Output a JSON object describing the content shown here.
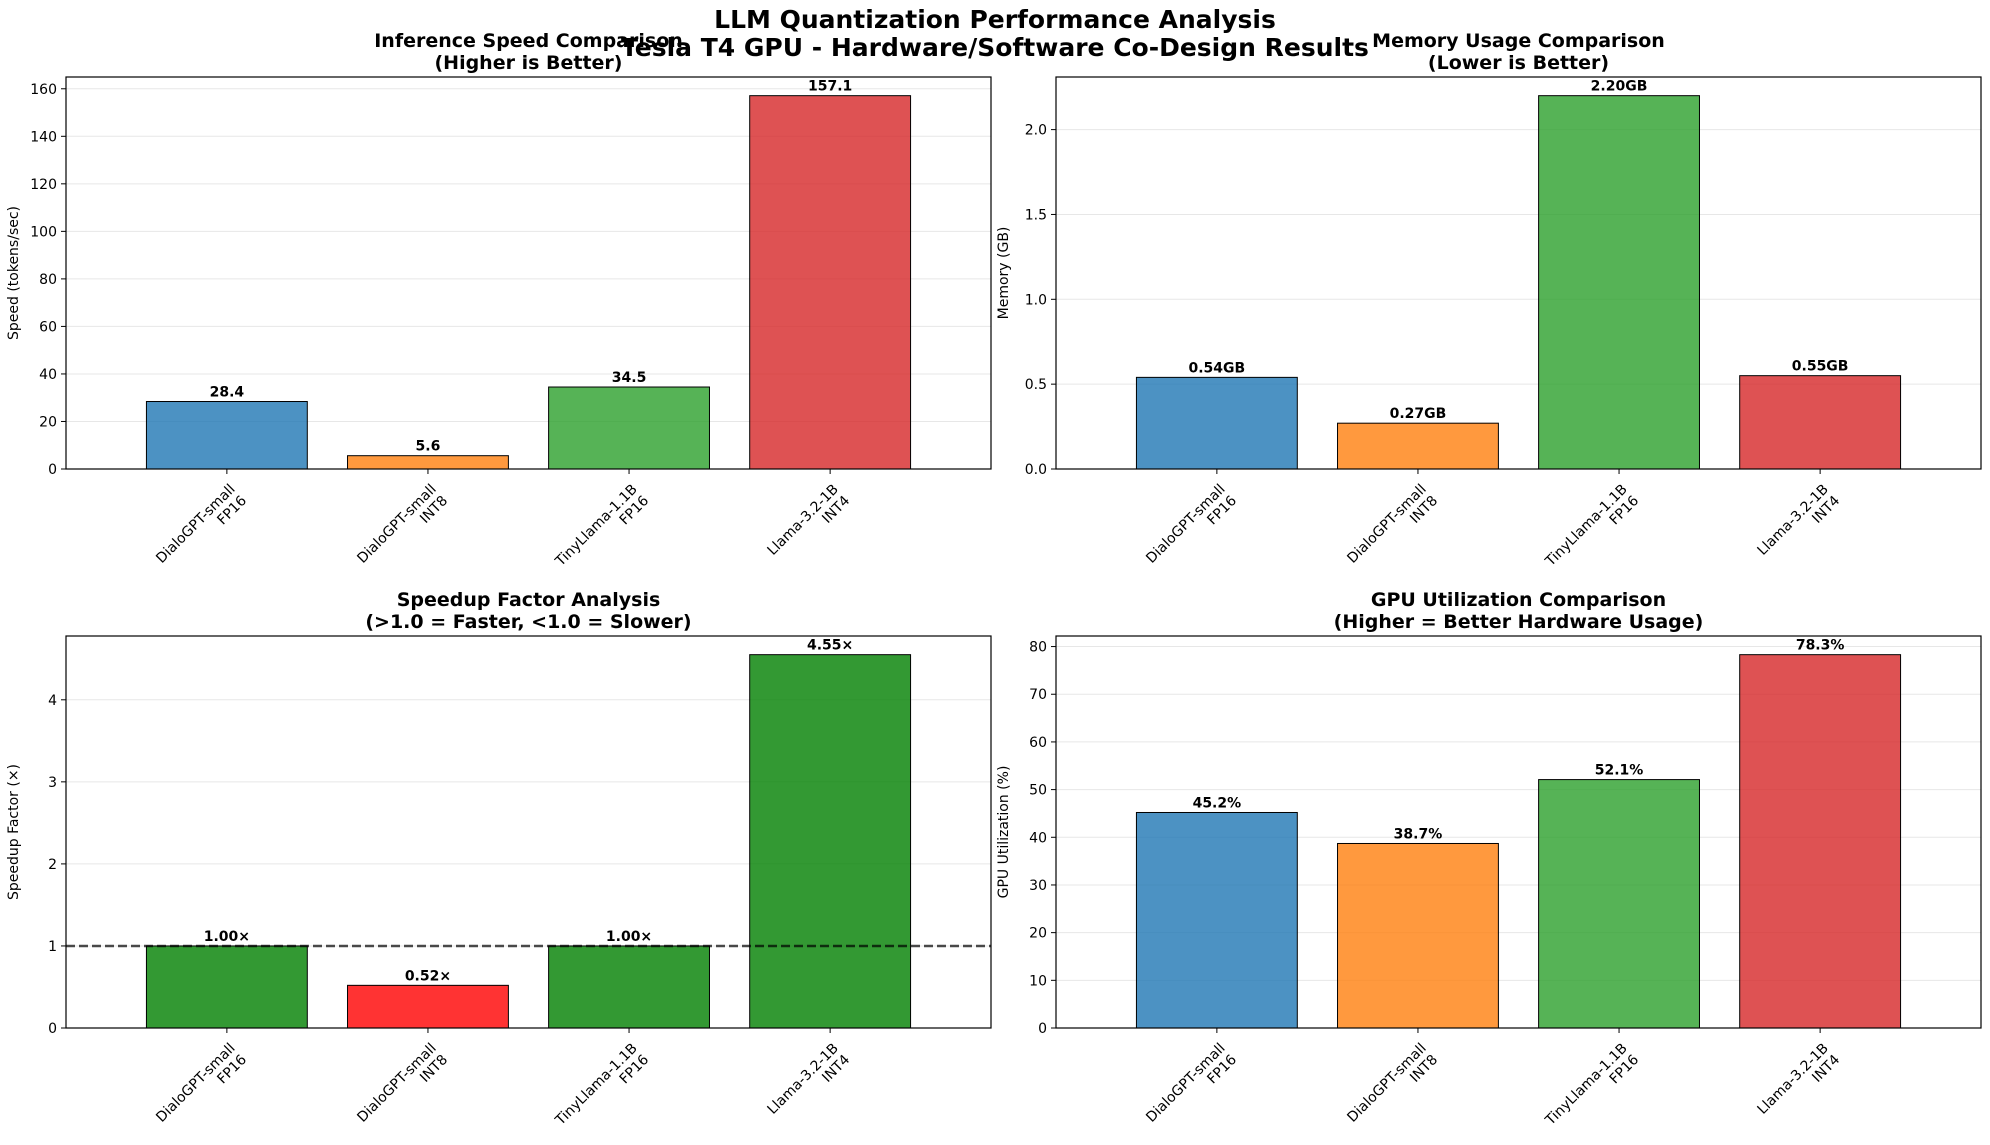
{
  "suptitle": [
    "LLM Quantization Performance Analysis",
    "Tesla T4 GPU - Hardware/Software Co-Design Results"
  ],
  "colors": {
    "blue": "#1f77b4",
    "orange": "#ff7f0e",
    "green": "#2ca02c",
    "red": "#d62728",
    "lightred": "#ff0000",
    "darkgreen": "#008000"
  },
  "chart_data": [
    {
      "type": "bar",
      "title": [
        "Inference Speed Comparison",
        "(Higher is Better)"
      ],
      "ylabel": "Speed (tokens/sec)",
      "categories": [
        [
          "DialoGPT-small",
          "FP16"
        ],
        [
          "DialoGPT-small",
          "INT8"
        ],
        [
          "TinyLlama-1.1B",
          "FP16"
        ],
        [
          "Llama-3.2-1B",
          "INT4"
        ]
      ],
      "values": [
        28.4,
        5.6,
        34.5,
        157.1
      ],
      "labels": [
        "28.4",
        "5.6",
        "34.5",
        "157.1"
      ],
      "bar_colors": [
        "#1f77b4",
        "#ff7f0e",
        "#2ca02c",
        "#d62728"
      ],
      "ylim": [
        0,
        164.955
      ],
      "yticks": [
        0,
        20,
        40,
        60,
        80,
        100,
        120,
        140,
        160
      ],
      "ytick_labels": [
        "0",
        "20",
        "40",
        "60",
        "80",
        "100",
        "120",
        "140",
        "160"
      ],
      "grid": "y"
    },
    {
      "type": "bar",
      "title": [
        "Memory Usage Comparison",
        "(Lower is Better)"
      ],
      "ylabel": "Memory (GB)",
      "categories": [
        [
          "DialoGPT-small",
          "FP16"
        ],
        [
          "DialoGPT-small",
          "INT8"
        ],
        [
          "TinyLlama-1.1B",
          "FP16"
        ],
        [
          "Llama-3.2-1B",
          "INT4"
        ]
      ],
      "values": [
        0.54,
        0.27,
        2.2,
        0.55
      ],
      "labels": [
        "0.54GB",
        "0.27GB",
        "2.20GB",
        "0.55GB"
      ],
      "bar_colors": [
        "#1f77b4",
        "#ff7f0e",
        "#2ca02c",
        "#d62728"
      ],
      "ylim": [
        0,
        2.31
      ],
      "yticks": [
        0,
        0.5,
        1.0,
        1.5,
        2.0
      ],
      "ytick_labels": [
        "0.0",
        "0.5",
        "1.0",
        "1.5",
        "2.0"
      ],
      "grid": "y"
    },
    {
      "type": "bar",
      "title": [
        "Speedup Factor Analysis",
        "(>1.0 = Faster, <1.0 = Slower)"
      ],
      "ylabel": "Speedup Factor (×)",
      "categories": [
        [
          "DialoGPT-small",
          "FP16"
        ],
        [
          "DialoGPT-small",
          "INT8"
        ],
        [
          "TinyLlama-1.1B",
          "FP16"
        ],
        [
          "Llama-3.2-1B",
          "INT4"
        ]
      ],
      "values": [
        1.0,
        0.52,
        1.0,
        4.55
      ],
      "labels": [
        "1.00×",
        "0.52×",
        "1.00×",
        "4.55×"
      ],
      "bar_colors": [
        "#008000",
        "#ff0000",
        "#008000",
        "#008000"
      ],
      "ylim": [
        0,
        4.7775
      ],
      "yticks": [
        0,
        1,
        2,
        3,
        4
      ],
      "ytick_labels": [
        "0",
        "1",
        "2",
        "3",
        "4"
      ],
      "reference_line": 1.0,
      "grid": "y"
    },
    {
      "type": "bar",
      "title": [
        "GPU Utilization Comparison",
        "(Higher = Better Hardware Usage)"
      ],
      "ylabel": "GPU Utilization (%)",
      "categories": [
        [
          "DialoGPT-small",
          "FP16"
        ],
        [
          "DialoGPT-small",
          "INT8"
        ],
        [
          "TinyLlama-1.1B",
          "FP16"
        ],
        [
          "Llama-3.2-1B",
          "INT4"
        ]
      ],
      "values": [
        45.2,
        38.7,
        52.1,
        78.3
      ],
      "labels": [
        "45.2%",
        "38.7%",
        "52.1%",
        "78.3%"
      ],
      "bar_colors": [
        "#1f77b4",
        "#ff7f0e",
        "#2ca02c",
        "#d62728"
      ],
      "ylim": [
        0,
        82.215
      ],
      "yticks": [
        0,
        10,
        20,
        30,
        40,
        50,
        60,
        70,
        80
      ],
      "ytick_labels": [
        "0",
        "10",
        "20",
        "30",
        "40",
        "50",
        "60",
        "70",
        "80"
      ],
      "grid": "y"
    }
  ]
}
